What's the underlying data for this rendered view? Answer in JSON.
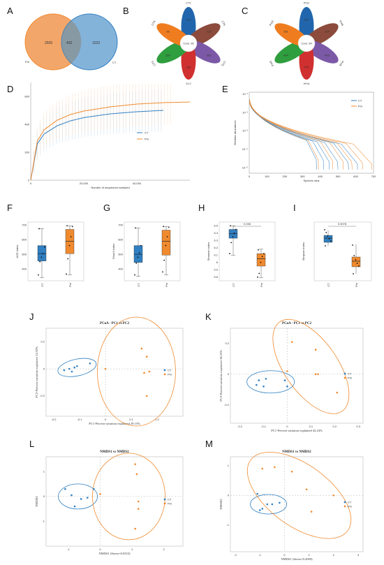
{
  "colors": {
    "ct": "#2f7fc1",
    "pm": "#f08a2e",
    "ct_fill": "#6ea6d3",
    "pm_fill": "#f3a66a",
    "petal_blue": "#2166ac",
    "petal_brown": "#8c4b3c",
    "petal_purple": "#7b59a6",
    "petal_red": "#d03030",
    "petal_green": "#2f9e3e",
    "petal_orange": "#ef7d1f"
  },
  "chart_data": [
    {
      "id": "A",
      "panel_label": "A",
      "type": "venn",
      "sets": [
        {
          "name": "Pm",
          "only": 2505
        },
        {
          "name": "CT",
          "only": 1520
        }
      ],
      "overlap": 432
    },
    {
      "id": "B",
      "panel_label": "B",
      "type": "flower",
      "core_label": "Core: 90",
      "petals": [
        {
          "name": "CT1",
          "value": 270,
          "color_key": "petal_blue"
        },
        {
          "name": "CT6",
          "value": 220,
          "color_key": "petal_brown"
        },
        {
          "name": "CT5",
          "value": 362,
          "color_key": "petal_purple"
        },
        {
          "name": "CT2",
          "value": 186,
          "color_key": "petal_red"
        },
        {
          "name": "CT3",
          "value": 259,
          "color_key": "petal_green"
        },
        {
          "name": "CT4",
          "value": 96,
          "color_key": "petal_orange"
        }
      ]
    },
    {
      "id": "C",
      "panel_label": "C",
      "type": "flower",
      "core_label": "Core: 54",
      "petals": [
        {
          "name": "Pm1",
          "value": 301,
          "color_key": "petal_blue"
        },
        {
          "name": "Pm6",
          "value": 164,
          "color_key": "petal_brown"
        },
        {
          "name": "Pm5",
          "value": 403,
          "color_key": "petal_purple"
        },
        {
          "name": "Pm4",
          "value": 475,
          "color_key": "petal_red"
        },
        {
          "name": "Pm3",
          "value": 404,
          "color_key": "petal_green"
        },
        {
          "name": "Pm2",
          "value": 251,
          "color_key": "petal_orange"
        }
      ]
    },
    {
      "id": "D",
      "panel_label": "D",
      "type": "line",
      "xlabel": "Number of sequences sampled",
      "ylabel": "",
      "xlim": [
        0,
        60000
      ],
      "ylim": [
        0,
        700
      ],
      "xticks": [
        0,
        20000,
        40000
      ],
      "xtick_labels": [
        "0",
        "20,000",
        "40,000"
      ],
      "yticks": [
        0,
        200,
        400,
        600
      ],
      "ytick_labels": [
        "0",
        "200",
        "400",
        "600"
      ],
      "legend": "right",
      "series": [
        {
          "name": "CT",
          "color_key": "ct",
          "x": [
            0,
            2500,
            5000,
            10000,
            15000,
            20000,
            30000,
            40000,
            50000
          ],
          "y": [
            0,
            260,
            330,
            390,
            425,
            448,
            475,
            490,
            500
          ]
        },
        {
          "name": "Pm",
          "color_key": "pm",
          "x": [
            0,
            2500,
            5000,
            10000,
            15000,
            20000,
            30000,
            40000,
            50000,
            60000
          ],
          "y": [
            0,
            280,
            360,
            430,
            470,
            495,
            525,
            545,
            555,
            560
          ]
        }
      ]
    },
    {
      "id": "E",
      "panel_label": "E",
      "type": "line",
      "xlabel": "Species rank",
      "ylabel": "Relative abundance",
      "xlim": [
        0,
        700
      ],
      "ylim_log10": [
        -5.3,
        -0.9
      ],
      "xticks": [
        0,
        100,
        200,
        300,
        400,
        500,
        600,
        700
      ],
      "yticks_log10": [
        -5,
        -4,
        -3,
        -2,
        -1
      ],
      "ytick_labels": [
        "10⁻⁵",
        "10⁻⁴",
        "10⁻³",
        "10⁻²",
        "10⁻¹"
      ],
      "legend": "top-right",
      "series": [
        {
          "name": "CT",
          "color_key": "ct",
          "ranks": [
            380,
            420,
            450,
            500,
            560,
            610
          ]
        },
        {
          "name": "Pm",
          "color_key": "pm",
          "ranks": [
            390,
            470,
            530,
            580,
            640,
            690
          ]
        }
      ]
    },
    {
      "id": "F",
      "panel_label": "F",
      "type": "box",
      "ylabel": "ACE index",
      "categories": [
        "CT",
        "Pm"
      ],
      "ylim": [
        320,
        720
      ],
      "yticks": [
        400,
        500,
        600,
        700
      ],
      "boxes": [
        {
          "name": "CT",
          "color_key": "ct",
          "min": 340,
          "q1": 455,
          "median": 505,
          "q3": 560,
          "max": 675,
          "points": [
            360,
            450,
            480,
            505,
            550,
            675
          ]
        },
        {
          "name": "Pm",
          "color_key": "pm",
          "min": 360,
          "q1": 505,
          "median": 590,
          "q3": 670,
          "max": 695,
          "points": [
            365,
            470,
            560,
            620,
            690,
            695
          ]
        }
      ]
    },
    {
      "id": "G",
      "panel_label": "G",
      "type": "box",
      "ylabel": "Chao1 index",
      "categories": [
        "CT",
        "Pm"
      ],
      "ylim": [
        320,
        720
      ],
      "yticks": [
        400,
        500,
        600,
        700
      ],
      "boxes": [
        {
          "name": "CT",
          "color_key": "ct",
          "min": 350,
          "q1": 445,
          "median": 500,
          "q3": 560,
          "max": 680,
          "points": [
            360,
            440,
            480,
            510,
            560,
            680
          ]
        },
        {
          "name": "Pm",
          "color_key": "pm",
          "min": 360,
          "q1": 495,
          "median": 590,
          "q3": 665,
          "max": 690,
          "points": [
            380,
            460,
            560,
            620,
            685,
            690
          ]
        }
      ]
    },
    {
      "id": "H",
      "panel_label": "H",
      "type": "box",
      "ylabel": "Shannon index",
      "categories": [
        "CT",
        "Pm"
      ],
      "ylim": [
        5.75,
        6.55
      ],
      "yticks": [
        5.8,
        5.9,
        6.0,
        6.1,
        6.2,
        6.3,
        6.4,
        6.5
      ],
      "significance": "0.036",
      "boxes": [
        {
          "name": "CT",
          "color_key": "ct",
          "min": 6.1,
          "q1": 6.33,
          "median": 6.39,
          "q3": 6.45,
          "max": 6.5,
          "points": [
            6.12,
            6.27,
            6.35,
            6.4,
            6.45,
            6.5
          ]
        },
        {
          "name": "Pm",
          "color_key": "pm",
          "min": 5.79,
          "q1": 5.95,
          "median": 6.05,
          "q3": 6.12,
          "max": 6.18,
          "points": [
            5.8,
            5.85,
            6.0,
            6.08,
            6.12,
            6.17
          ]
        }
      ]
    },
    {
      "id": "I",
      "panel_label": "I",
      "type": "box",
      "ylabel": "Simpson index",
      "categories": [
        "CT",
        "Pm"
      ],
      "ylim": [
        0.9985,
        0.99815
      ],
      "significance": "0.0078",
      "boxes": []
    },
    {
      "id": "J",
      "panel_label": "J",
      "type": "scatter",
      "title": "PCoA - PC1 vs PC2",
      "xlabel": "PC1-Percent variation explained 29.15%",
      "ylabel": "PC2-Percent variation explained 13.92%",
      "xlim": [
        -0.23,
        0.3
      ],
      "ylim": [
        -0.35,
        0.3
      ],
      "xticks": [
        -0.2,
        -0.1,
        0.0,
        0.1,
        0.2
      ],
      "yticks": [
        -0.2,
        0.0,
        0.2
      ],
      "legend": "right",
      "series": [
        {
          "name": "CT",
          "color_key": "ct",
          "x": [
            -0.16,
            -0.14,
            -0.12,
            -0.11,
            -0.06,
            -0.13
          ],
          "y": [
            -0.01,
            0.0,
            0.01,
            0.02,
            0.04,
            -0.02
          ]
        },
        {
          "name": "Pm",
          "color_key": "pm",
          "x": [
            0.0,
            0.14,
            0.16,
            0.15,
            0.17,
            0.16
          ],
          "y": [
            0.0,
            0.15,
            0.09,
            -0.03,
            -0.02,
            -0.2
          ]
        }
      ]
    },
    {
      "id": "K",
      "panel_label": "K",
      "type": "scatter",
      "title": "PCoA - PC1 vs PC2",
      "xlabel": "PC1-Percent variation explained 42.24%",
      "ylabel": "PC2-Percent variation explained 18.25%",
      "xlim": [
        -0.24,
        0.32
      ],
      "ylim": [
        -0.32,
        0.3
      ],
      "xticks": [
        -0.2,
        -0.1,
        0.0,
        0.1,
        0.2,
        0.3
      ],
      "yticks": [
        -0.2,
        0.0,
        0.2
      ],
      "legend": "right",
      "series": [
        {
          "name": "CT",
          "color_key": "ct",
          "x": [
            -0.13,
            -0.12,
            -0.09,
            -0.1,
            -0.01,
            0.0
          ],
          "y": [
            -0.07,
            -0.04,
            -0.03,
            -0.08,
            -0.04,
            -0.08
          ]
        },
        {
          "name": "Pm",
          "color_key": "pm",
          "x": [
            0.0,
            0.02,
            0.12,
            0.13,
            0.12,
            0.21
          ],
          "y": [
            0.02,
            0.21,
            0.16,
            0.0,
            0.0,
            -0.12
          ]
        }
      ]
    },
    {
      "id": "L",
      "panel_label": "L",
      "type": "scatter",
      "title": "NMDS1 vs NMDS2",
      "xlabel": "NMDS1 (Stress=0.0353)",
      "ylabel": "NMDS2",
      "xlim": [
        -1.7,
        2.6
      ],
      "ylim": [
        -2.0,
        1.6
      ],
      "xticks": [
        -1,
        0,
        1,
        2
      ],
      "yticks": [
        -1,
        0,
        1
      ],
      "legend": "right",
      "series": [
        {
          "name": "CT",
          "color_key": "ct",
          "x": [
            -1.1,
            -0.9,
            -0.6,
            -0.4,
            -0.2,
            -0.8
          ],
          "y": [
            0.3,
            0.05,
            -0.1,
            -0.05,
            0.3,
            -0.4
          ]
        },
        {
          "name": "Pm",
          "color_key": "pm",
          "x": [
            0.0,
            1.1,
            1.15,
            1.2,
            1.2,
            1.1
          ],
          "y": [
            0.1,
            1.3,
            0.9,
            -0.2,
            -0.5,
            -1.3
          ]
        }
      ]
    },
    {
      "id": "M",
      "panel_label": "M",
      "type": "scatter",
      "title": "NMDS1 vs NMDS2",
      "xlabel": "NMDS1 (Stress=0.2069)",
      "ylabel": "NMDS2",
      "xlim": [
        -2.2,
        3.2
      ],
      "ylim": [
        -1.9,
        1.3
      ],
      "xticks": [
        -2,
        -1,
        0,
        1,
        2,
        3
      ],
      "yticks": [
        -1,
        0,
        1
      ],
      "legend": "right",
      "series": [
        {
          "name": "CT",
          "color_key": "ct",
          "x": [
            -1.0,
            -0.9,
            -0.7,
            -0.5,
            -0.2,
            -1.1
          ],
          "y": [
            -0.5,
            -0.45,
            -0.3,
            -0.3,
            -0.25,
            0.05
          ]
        },
        {
          "name": "Pm",
          "color_key": "pm",
          "x": [
            -0.9,
            -0.4,
            0.3,
            0.9,
            1.1,
            2.0
          ],
          "y": [
            0.9,
            0.95,
            0.8,
            0.2,
            -0.55,
            0.0
          ]
        }
      ]
    }
  ]
}
